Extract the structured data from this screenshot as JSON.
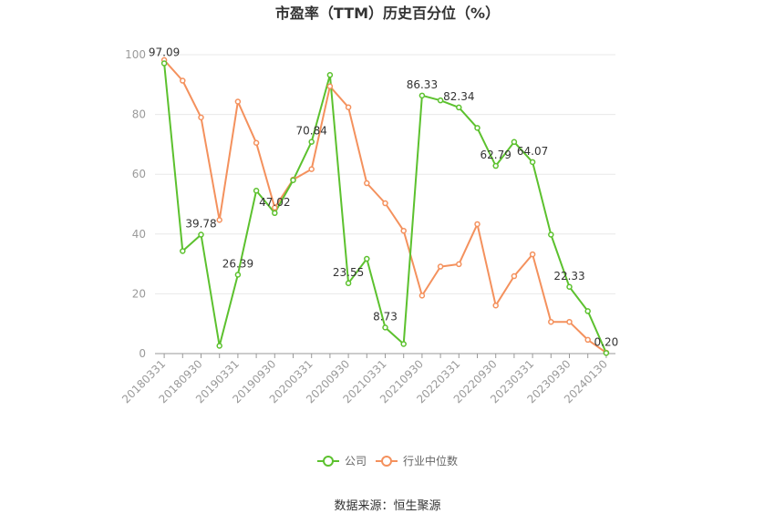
{
  "chart_data": {
    "type": "line",
    "title": "市盈率（TTM）历史百分位（%）",
    "xlabel": "",
    "ylabel": "",
    "ylim": [
      0,
      100
    ],
    "yticks": [
      0,
      20,
      40,
      60,
      80,
      100
    ],
    "x": [
      "20180331",
      "20180630",
      "20180930",
      "20181231",
      "20190331",
      "20190630",
      "20190930",
      "20191231",
      "20200331",
      "20200630",
      "20200930",
      "20201231",
      "20210331",
      "20210630",
      "20210930",
      "20211231",
      "20220331",
      "20220630",
      "20220930",
      "20221231",
      "20230331",
      "20230630",
      "20230930",
      "20231231",
      "20240130"
    ],
    "xtick_labels": [
      "20180331",
      "20180930",
      "20190331",
      "20190930",
      "20200331",
      "20200930",
      "20210331",
      "20210930",
      "20220331",
      "20220930",
      "20230331",
      "20230930",
      "20240130"
    ],
    "series": [
      {
        "name": "公司",
        "color": "#5cc12e",
        "values": [
          97.09,
          34.3,
          39.78,
          2.6,
          26.39,
          54.5,
          47.02,
          58.0,
          70.84,
          93.2,
          23.55,
          31.7,
          8.73,
          3.2,
          86.33,
          84.7,
          82.34,
          75.5,
          62.79,
          70.8,
          64.07,
          39.8,
          22.33,
          14.2,
          0.2
        ]
      },
      {
        "name": "行业中位数",
        "color": "#f4915d",
        "values": [
          98.2,
          91.3,
          79.0,
          44.7,
          84.3,
          70.5,
          48.8,
          58.2,
          61.7,
          89.4,
          82.4,
          57.0,
          50.3,
          41.1,
          19.4,
          29.1,
          29.9,
          43.3,
          16.1,
          25.9,
          33.2,
          10.6,
          10.6,
          4.6,
          0.3
        ]
      }
    ],
    "data_labels": [
      {
        "series": 0,
        "index": 0,
        "text": "97.09"
      },
      {
        "series": 0,
        "index": 2,
        "text": "39.78"
      },
      {
        "series": 0,
        "index": 4,
        "text": "26.39"
      },
      {
        "series": 0,
        "index": 6,
        "text": "47.02"
      },
      {
        "series": 0,
        "index": 8,
        "text": "70.84"
      },
      {
        "series": 0,
        "index": 10,
        "text": "23.55"
      },
      {
        "series": 0,
        "index": 12,
        "text": "8.73"
      },
      {
        "series": 0,
        "index": 14,
        "text": "86.33"
      },
      {
        "series": 0,
        "index": 16,
        "text": "82.34"
      },
      {
        "series": 0,
        "index": 18,
        "text": "62.79"
      },
      {
        "series": 0,
        "index": 20,
        "text": "64.07"
      },
      {
        "series": 0,
        "index": 22,
        "text": "22.33"
      },
      {
        "series": 0,
        "index": 24,
        "text": "0.20"
      }
    ],
    "grid": true,
    "legend_position": "bottom-center"
  },
  "source": "数据来源：恒生聚源"
}
